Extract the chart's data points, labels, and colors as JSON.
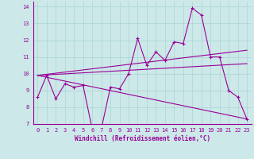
{
  "xlabel": "Windchill (Refroidissement éolien,°C)",
  "bg_color": "#cce8e8",
  "line_color": "#990099",
  "xlim": [
    -0.5,
    23.5
  ],
  "ylim": [
    7,
    14.3
  ],
  "xticks": [
    0,
    1,
    2,
    3,
    4,
    5,
    6,
    7,
    8,
    9,
    10,
    11,
    12,
    13,
    14,
    15,
    16,
    17,
    18,
    19,
    20,
    21,
    22,
    23
  ],
  "yticks": [
    7,
    8,
    9,
    10,
    11,
    12,
    13,
    14
  ],
  "line1_x": [
    0,
    1,
    2,
    3,
    4,
    5,
    6,
    7,
    8,
    9,
    10,
    11,
    12,
    13,
    14,
    15,
    16,
    17,
    18,
    19,
    20,
    21,
    22,
    23
  ],
  "line1_y": [
    8.6,
    9.9,
    8.5,
    9.4,
    9.2,
    9.3,
    6.7,
    6.7,
    9.2,
    9.1,
    10.0,
    12.1,
    10.5,
    11.3,
    10.8,
    11.9,
    11.8,
    13.9,
    13.5,
    11.0,
    11.0,
    9.0,
    8.6,
    7.3
  ],
  "line2_x": [
    0,
    23
  ],
  "line2_y": [
    9.9,
    7.3
  ],
  "line3_x": [
    0,
    23
  ],
  "line3_y": [
    9.9,
    11.4
  ],
  "line4_x": [
    0,
    23
  ],
  "line4_y": [
    9.9,
    10.6
  ],
  "grid_color": "#aad4d4",
  "font_color": "#990099",
  "label_fontsize": 5.5,
  "tick_fontsize": 5.0
}
